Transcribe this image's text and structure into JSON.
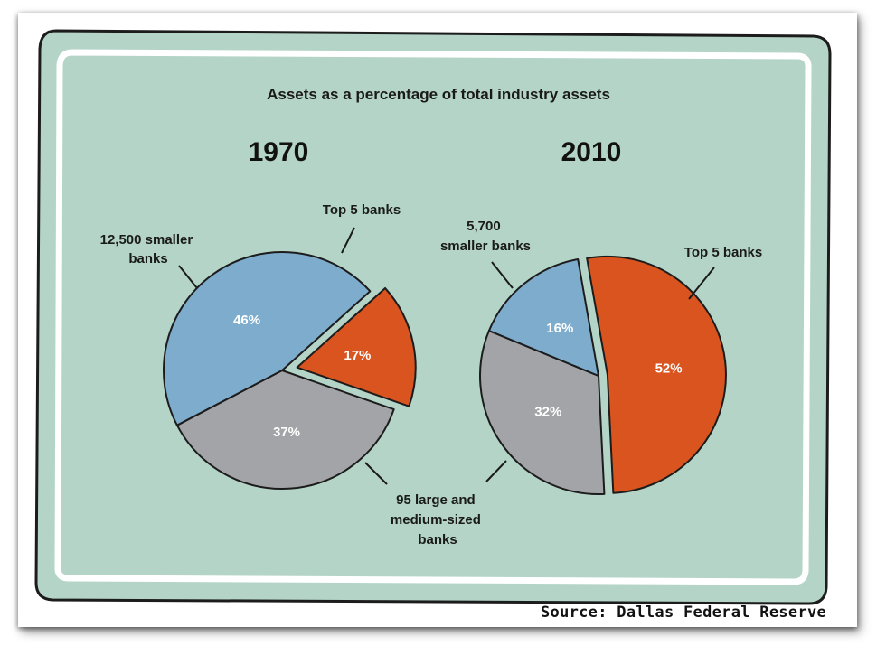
{
  "colors": {
    "panel": "#b3d4c6",
    "outline": "#1c1c1c",
    "inner_border": "#ffffff",
    "top5": "#d9541e",
    "large_medium": "#a3a4a7",
    "smaller": "#7eaccd"
  },
  "source": "Source: Dallas Federal Reserve",
  "chart_data": [
    {
      "type": "pie",
      "title": "Assets as a percentage of total industry assets",
      "subtitle": "1970",
      "slices": [
        {
          "label": "Top 5 banks",
          "value": 17,
          "value_label": "17%",
          "color": "#d9541e",
          "exploded": true
        },
        {
          "label": "95 large and medium-sized banks",
          "value": 37,
          "value_label": "37%",
          "color": "#a3a4a7"
        },
        {
          "label": "12,500 smaller banks",
          "value": 46,
          "value_label": "46%",
          "color": "#7eaccd"
        }
      ],
      "callouts": [
        {
          "lines": [
            "Top 5 banks"
          ]
        },
        {
          "lines": [
            "12,500 smaller",
            "banks"
          ]
        }
      ]
    },
    {
      "type": "pie",
      "title": "Assets as a percentage of total industry assets",
      "subtitle": "2010",
      "slices": [
        {
          "label": "Top 5 banks",
          "value": 52,
          "value_label": "52%",
          "color": "#d9541e",
          "exploded": true
        },
        {
          "label": "95 large and medium-sized banks",
          "value": 32,
          "value_label": "32%",
          "color": "#a3a4a7"
        },
        {
          "label": "5,700 smaller banks",
          "value": 16,
          "value_label": "16%",
          "color": "#7eaccd"
        }
      ],
      "callouts": [
        {
          "lines": [
            "5,700",
            "smaller banks"
          ]
        },
        {
          "lines": [
            "Top 5 banks"
          ]
        }
      ]
    }
  ],
  "shared_callout": {
    "lines": [
      "95 large and",
      "medium-sized",
      "banks"
    ]
  }
}
